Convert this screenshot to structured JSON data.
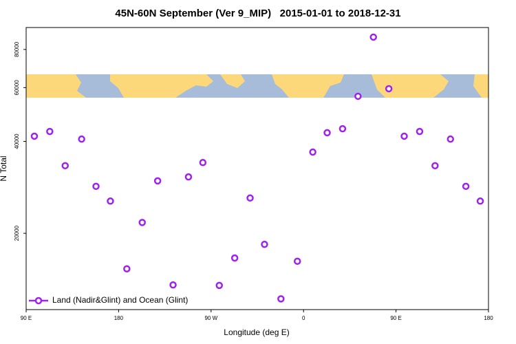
{
  "chart_data": {
    "type": "scatter",
    "title": "45N-60N September (Ver 9_MIP)   2015-01-01 to 2018-12-31",
    "x_label": "Longitude (deg E)",
    "y_label": "N Total",
    "series": [
      {
        "name": "Land (Nadir&Glint) and Ocean (Glint)",
        "color": "#a020f0",
        "x": [
          98,
          113,
          128,
          144,
          158,
          172,
          188,
          203,
          218,
          233,
          248,
          262,
          278,
          293,
          308,
          322,
          338,
          354,
          369,
          383,
          398,
          413,
          428,
          443,
          458,
          473,
          488,
          503,
          518,
          532
        ],
        "values": [
          41600,
          43100,
          33300,
          40700,
          28500,
          25500,
          15300,
          21700,
          29700,
          13550,
          30600,
          34100,
          13500,
          16600,
          26100,
          18400,
          12200,
          16200,
          36900,
          42700,
          44000,
          56200,
          87800,
          59500,
          41600,
          43100,
          33300,
          40700,
          28500,
          25500
        ]
      }
    ],
    "xlim": [
      90,
      540
    ],
    "xticks": [
      {
        "value": 90,
        "label": "90 E"
      },
      180,
      {
        "value": 270,
        "label": "90 W"
      },
      {
        "value": 360,
        "label": "0"
      },
      {
        "value": 450,
        "label": "90 E"
      },
      {
        "value": 540,
        "label": "180"
      }
    ],
    "ylim": [
      11250,
      94400
    ],
    "ylog": true,
    "yticks": [
      20000,
      40000,
      60000,
      80000
    ],
    "legend": "bottom-left"
  }
}
